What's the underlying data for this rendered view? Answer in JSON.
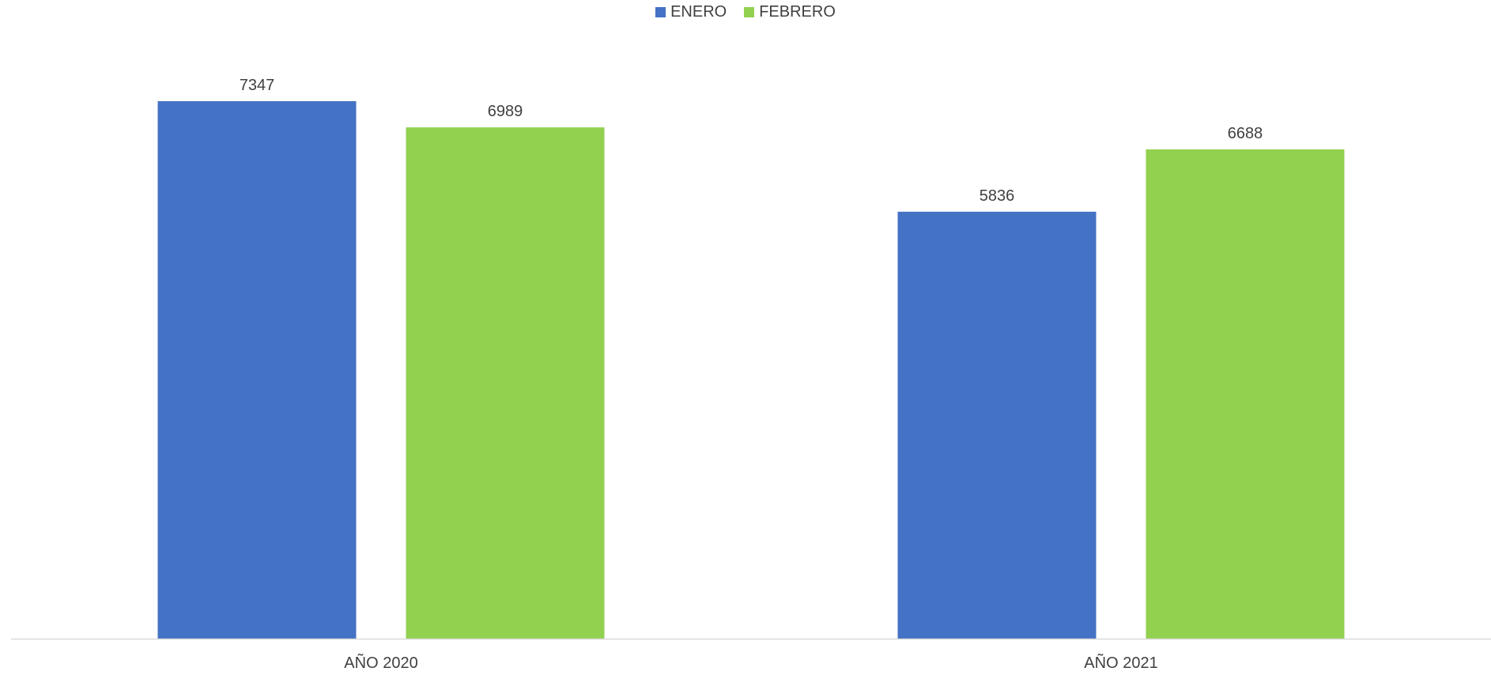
{
  "chart_data": {
    "type": "bar",
    "categories": [
      "AÑO 2020",
      "AÑO 2021"
    ],
    "series": [
      {
        "name": "ENERO",
        "values": [
          7347,
          5836
        ],
        "color": "#4472C4"
      },
      {
        "name": "FEBRERO",
        "values": [
          6989,
          6688
        ],
        "color": "#92D050"
      }
    ],
    "ylim": [
      0,
      7347
    ],
    "grid": false,
    "legend_position": "top-center",
    "data_labels": true,
    "axis_color": "#D9D9D9"
  }
}
